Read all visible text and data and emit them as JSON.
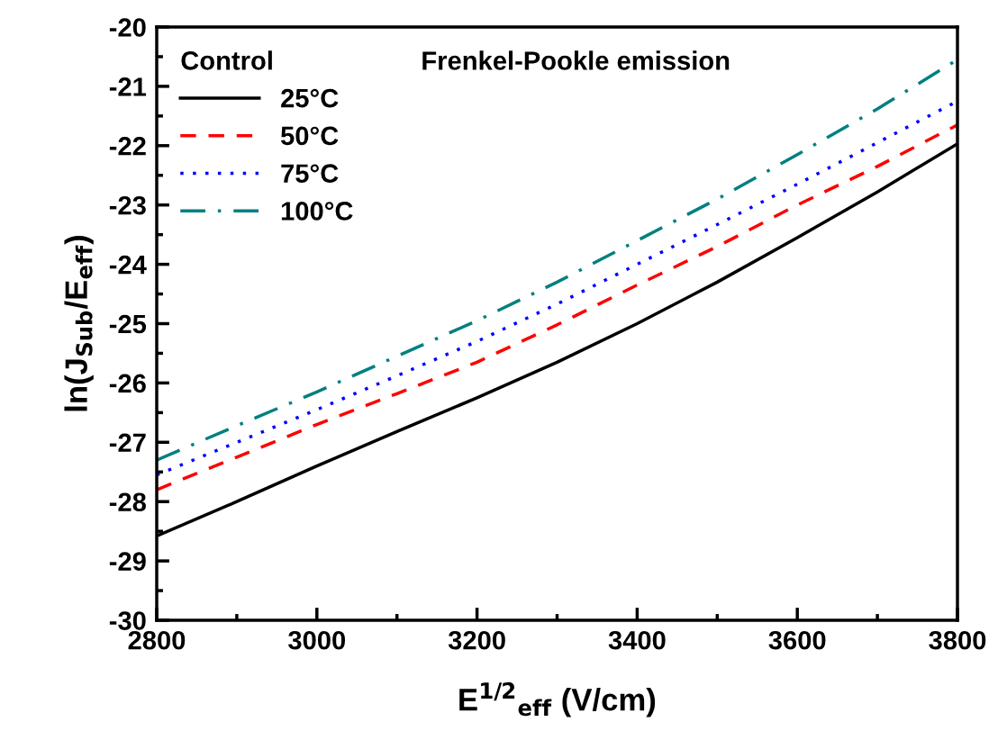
{
  "chart_data": {
    "type": "line",
    "xlabel": "E$^{1/2}$$_{eff}$ (V/cm)",
    "ylabel": "ln(J$_{Sub}$/E$_{eff}$)",
    "legend_title": "Control",
    "legend": "top left",
    "annotations": [
      "Frenkel-Pookle emission"
    ],
    "x": [
      2800,
      2900,
      3000,
      3100,
      3200,
      3300,
      3400,
      3500,
      3600,
      3700,
      3800
    ],
    "series": [
      {
        "name": "25°C",
        "color": "#000000",
        "line_style": "solid",
        "values": [
          -28.58,
          -28.0,
          -27.4,
          -26.82,
          -26.25,
          -25.65,
          -25.0,
          -24.3,
          -23.55,
          -22.78,
          -21.97
        ]
      },
      {
        "name": "50°C",
        "color": "#ff0000",
        "line_style": "dashed",
        "values": [
          -27.8,
          -27.25,
          -26.7,
          -26.18,
          -25.65,
          -25.02,
          -24.35,
          -23.7,
          -23.0,
          -22.35,
          -21.65
        ]
      },
      {
        "name": "75°C",
        "color": "#0000ff",
        "line_style": "dotted",
        "values": [
          -27.55,
          -27.0,
          -26.45,
          -25.88,
          -25.3,
          -24.67,
          -24.0,
          -23.33,
          -22.65,
          -21.95,
          -21.25
        ]
      },
      {
        "name": "100°C",
        "color": "#008080",
        "line_style": "dashdot",
        "values": [
          -27.3,
          -26.72,
          -26.15,
          -25.55,
          -24.95,
          -24.3,
          -23.6,
          -22.9,
          -22.15,
          -21.38,
          -20.55
        ]
      }
    ],
    "xlim": [
      2800,
      3800
    ],
    "xticks": [
      2800,
      3000,
      3200,
      3400,
      3600,
      3800
    ],
    "ylim": [
      -30,
      -20
    ],
    "yticks": [
      -30,
      -29,
      -28,
      -27,
      -26,
      -25,
      -24,
      -23,
      -22,
      -21,
      -20
    ],
    "grid": false
  }
}
